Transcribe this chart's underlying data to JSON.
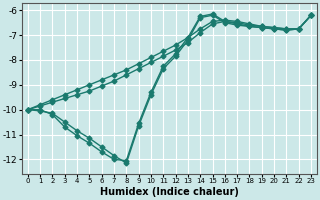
{
  "xlabel": "Humidex (Indice chaleur)",
  "background_color": "#cce8e8",
  "grid_color": "#ffffff",
  "line_color": "#1a7a6e",
  "marker": "D",
  "markersize": 2.5,
  "linewidth": 1.0,
  "xlim": [
    -0.5,
    23.5
  ],
  "ylim": [
    -12.6,
    -5.7
  ],
  "xticks": [
    0,
    1,
    2,
    3,
    4,
    5,
    6,
    7,
    8,
    9,
    10,
    11,
    12,
    13,
    14,
    15,
    16,
    17,
    18,
    19,
    20,
    21,
    22,
    23
  ],
  "yticks": [
    -12,
    -11,
    -10,
    -9,
    -8,
    -7,
    -6
  ],
  "series": [
    {
      "x": [
        0,
        1,
        2,
        3,
        4,
        5,
        6,
        7,
        8,
        9,
        10,
        11,
        12,
        13,
        14,
        15,
        16,
        17,
        18,
        19,
        20,
        21,
        22,
        23
      ],
      "y": [
        -10.0,
        -10.0,
        -10.2,
        -10.7,
        -11.05,
        -11.35,
        -11.7,
        -12.0,
        -12.05,
        -10.55,
        -9.3,
        -8.25,
        -7.75,
        -7.1,
        -6.25,
        -6.15,
        -6.45,
        -6.55,
        -6.65,
        -6.7,
        -6.75,
        -6.8,
        -6.75,
        -6.2
      ]
    },
    {
      "x": [
        0,
        1,
        2,
        3,
        4,
        5,
        6,
        7,
        8,
        9,
        10,
        11,
        12,
        13,
        14,
        15,
        16,
        17,
        18,
        19,
        20,
        21,
        22,
        23
      ],
      "y": [
        -10.0,
        -10.05,
        -10.15,
        -10.5,
        -10.85,
        -11.15,
        -11.5,
        -11.85,
        -12.15,
        -10.65,
        -9.4,
        -8.35,
        -7.85,
        -7.2,
        -6.3,
        -6.2,
        -6.5,
        -6.6,
        -6.65,
        -6.7,
        -6.75,
        -6.8,
        -6.75,
        -6.2
      ]
    },
    {
      "x": [
        0,
        1,
        2,
        3,
        4,
        5,
        6,
        7,
        8,
        9,
        10,
        11,
        12,
        13,
        14,
        15,
        16,
        17,
        18,
        19,
        20,
        21,
        22,
        23
      ],
      "y": [
        -10.0,
        -9.85,
        -9.7,
        -9.55,
        -9.4,
        -9.25,
        -9.05,
        -8.85,
        -8.6,
        -8.35,
        -8.1,
        -7.85,
        -7.6,
        -7.3,
        -6.9,
        -6.55,
        -6.45,
        -6.5,
        -6.6,
        -6.65,
        -6.7,
        -6.75,
        -6.75,
        -6.2
      ]
    },
    {
      "x": [
        0,
        1,
        2,
        3,
        4,
        5,
        6,
        7,
        8,
        9,
        10,
        11,
        12,
        13,
        14,
        15,
        16,
        17,
        18,
        19,
        20,
        21,
        22,
        23
      ],
      "y": [
        -10.0,
        -9.8,
        -9.6,
        -9.4,
        -9.2,
        -9.0,
        -8.8,
        -8.6,
        -8.4,
        -8.15,
        -7.9,
        -7.65,
        -7.4,
        -7.1,
        -6.75,
        -6.45,
        -6.4,
        -6.45,
        -6.55,
        -6.65,
        -6.7,
        -6.75,
        -6.75,
        -6.2
      ]
    }
  ]
}
